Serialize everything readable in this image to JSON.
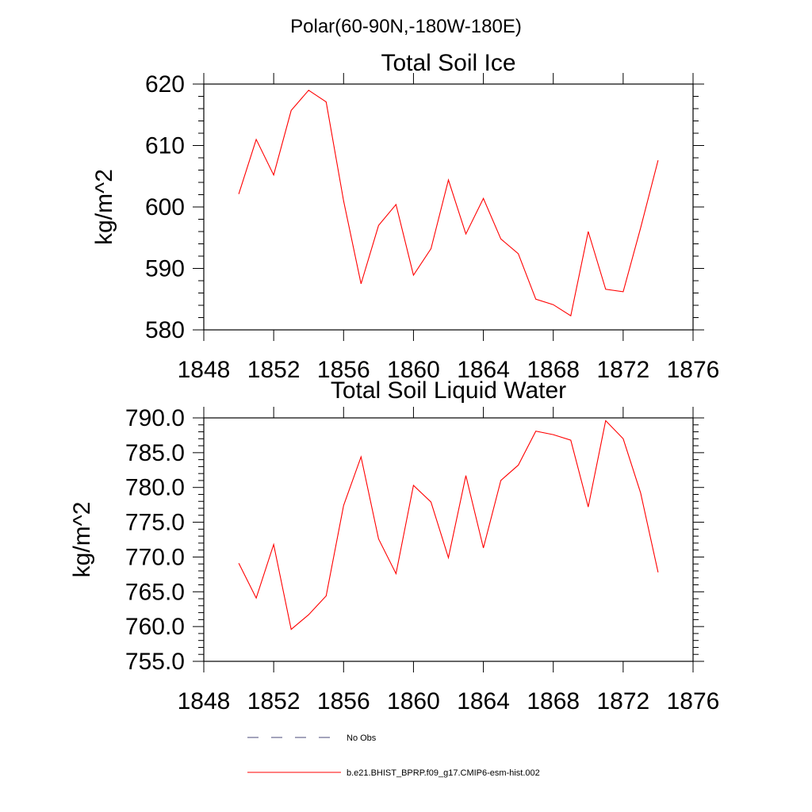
{
  "figure_title": "Polar(60-90N,-180W-180E)",
  "chart_data": [
    {
      "type": "line",
      "title": "Total Soil Ice",
      "xlabel": "",
      "ylabel": "kg/m^2",
      "xlim": [
        1848,
        1876
      ],
      "ylim": [
        580,
        620
      ],
      "xticks": [
        1848,
        1852,
        1856,
        1860,
        1864,
        1868,
        1872,
        1876
      ],
      "xtick_labels": [
        "1848",
        "1852",
        "1856",
        "1860",
        "1864",
        "1868",
        "1872",
        "1876"
      ],
      "yticks": [
        580,
        590,
        600,
        610,
        620
      ],
      "ytick_labels": [
        "580",
        "590",
        "600",
        "610",
        "620"
      ],
      "series": [
        {
          "name": "b.e21.BHIST_BPRP.f09_g17.CMIP6-esm-hist.002",
          "color": "#ff0000",
          "x": [
            1850,
            1851,
            1852,
            1853,
            1854,
            1855,
            1856,
            1857,
            1858,
            1859,
            1860,
            1861,
            1862,
            1863,
            1864,
            1865,
            1866,
            1867,
            1868,
            1869,
            1870,
            1871,
            1872,
            1873,
            1874
          ],
          "values": [
            602.1,
            611.0,
            605.2,
            615.7,
            619.0,
            617.1,
            601.0,
            587.5,
            597.0,
            600.4,
            588.9,
            593.2,
            604.4,
            595.6,
            601.4,
            594.8,
            592.4,
            585.0,
            584.1,
            582.3,
            596.0,
            586.6,
            586.2,
            596.6,
            607.6
          ]
        }
      ]
    },
    {
      "type": "line",
      "title": "Total Soil Liquid Water",
      "xlabel": "",
      "ylabel": "kg/m^2",
      "xlim": [
        1848,
        1876
      ],
      "ylim": [
        755,
        790
      ],
      "xticks": [
        1848,
        1852,
        1856,
        1860,
        1864,
        1868,
        1872,
        1876
      ],
      "xtick_labels": [
        "1848",
        "1852",
        "1856",
        "1860",
        "1864",
        "1868",
        "1872",
        "1876"
      ],
      "yticks": [
        755,
        760,
        765,
        770,
        775,
        780,
        785,
        790
      ],
      "ytick_labels": [
        "755.0",
        "760.0",
        "765.0",
        "770.0",
        "775.0",
        "780.0",
        "785.0",
        "790.0"
      ],
      "series": [
        {
          "name": "b.e21.BHIST_BPRP.f09_g17.CMIP6-esm-hist.002",
          "color": "#ff0000",
          "x": [
            1850,
            1851,
            1852,
            1853,
            1854,
            1855,
            1856,
            1857,
            1858,
            1859,
            1860,
            1861,
            1862,
            1863,
            1864,
            1865,
            1866,
            1867,
            1868,
            1869,
            1870,
            1871,
            1872,
            1873,
            1874
          ],
          "values": [
            769.1,
            764.1,
            771.8,
            759.6,
            761.7,
            764.4,
            777.4,
            784.4,
            772.6,
            767.6,
            780.3,
            777.9,
            769.9,
            781.7,
            771.3,
            781.0,
            783.2,
            788.1,
            787.6,
            786.8,
            777.2,
            789.6,
            787.0,
            779.2,
            767.8
          ]
        }
      ]
    }
  ],
  "legend": {
    "placement": "bottom-center",
    "entries": [
      {
        "label": "No Obs",
        "style": "dashed",
        "color": "#4a4a7a"
      },
      {
        "label": "b.e21.BHIST_BPRP.f09_g17.CMIP6-esm-hist.002",
        "style": "solid",
        "color": "#ff0000"
      }
    ]
  }
}
